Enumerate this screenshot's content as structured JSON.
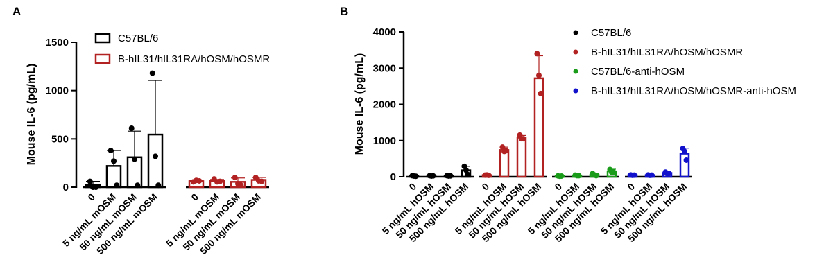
{
  "chart_data": [
    {
      "panel_label": "A",
      "type": "bar",
      "marker": "box",
      "ylabel": "Mouse IL-6 (pg/mL)",
      "ylim": [
        0,
        1500
      ],
      "yticks": [
        0,
        500,
        1000,
        1500
      ],
      "groups": [
        {
          "name": "C57BL/6",
          "color": "#000000",
          "categories": [
            "0",
            "5 ng/mL mOSM",
            "50 ng/mL mOSM",
            "500 ng/mL mOSM"
          ],
          "means": [
            20,
            220,
            310,
            545
          ],
          "sd": [
            40,
            160,
            270,
            560
          ],
          "points": [
            [
              60,
              0,
              0
            ],
            [
              380,
              270,
              20
            ],
            [
              610,
              290,
              20
            ],
            [
              1180,
              320,
              20
            ]
          ]
        },
        {
          "name": "B-hIL31/hIL31RA/hOSM/hOSMR",
          "color": "#b22222",
          "categories": [
            "0",
            "5 ng/mL mOSM",
            "50 ng/mL mOSM",
            "500 ng/mL mOSM"
          ],
          "means": [
            62,
            65,
            55,
            75
          ],
          "sd": [
            8,
            15,
            40,
            25
          ],
          "points": [
            [
              55,
              70,
              65
            ],
            [
              85,
              55,
              60
            ],
            [
              100,
              35,
              20
            ],
            [
              100,
              65,
              60
            ]
          ]
        }
      ]
    },
    {
      "panel_label": "B",
      "type": "bar",
      "marker": "dot",
      "ylabel": "Mouse IL-6 (pg/mL)",
      "ylim": [
        0,
        4000
      ],
      "yticks": [
        0,
        1000,
        2000,
        3000,
        4000
      ],
      "groups": [
        {
          "name": "C57BL/6",
          "color": "#000000",
          "categories": [
            "0",
            "5 ng/mL hOSM",
            "50 ng/mL hOSM",
            "500 ng/mL hOSM"
          ],
          "means": [
            20,
            25,
            25,
            180
          ],
          "sd": [
            10,
            10,
            10,
            110
          ],
          "points": [
            [
              30,
              20,
              15
            ],
            [
              30,
              20,
              25
            ],
            [
              30,
              20,
              25
            ],
            [
              290,
              180,
              60
            ]
          ]
        },
        {
          "name": "B-hIL31/hIL31RA/hOSM/hOSMR",
          "color": "#b22222",
          "categories": [
            "0",
            "5 ng/mL hOSM",
            "50 ng/mL hOSM",
            "500 ng/mL hOSM"
          ],
          "means": [
            45,
            740,
            1080,
            2720
          ],
          "sd": [
            8,
            80,
            60,
            620
          ],
          "points": [
            [
              45,
              50,
              40
            ],
            [
              820,
              700,
              720
            ],
            [
              1150,
              1050,
              1050
            ],
            [
              3400,
              2800,
              2300
            ]
          ]
        },
        {
          "name": "C57BL/6-anti-hOSM",
          "color": "#1a9c1a",
          "categories": [
            "0",
            "5 ng/mL hOSM",
            "50 ng/mL hOSM",
            "500 ng/mL hOSM"
          ],
          "means": [
            20,
            35,
            55,
            150
          ],
          "sd": [
            10,
            10,
            30,
            60
          ],
          "points": [
            [
              25,
              15,
              20
            ],
            [
              45,
              30,
              30
            ],
            [
              90,
              50,
              30
            ],
            [
              200,
              120,
              130
            ]
          ]
        },
        {
          "name": "B-hIL31/hIL31RA/hOSM/hOSMR-anti-hOSM",
          "color": "#1111cc",
          "categories": [
            "0",
            "5 ng/mL hOSM",
            "50 ng/mL hOSM",
            "500 ng/mL hOSM"
          ],
          "means": [
            45,
            45,
            105,
            640
          ],
          "sd": [
            8,
            8,
            25,
            150
          ],
          "points": [
            [
              50,
              40,
              45
            ],
            [
              50,
              40,
              45
            ],
            [
              130,
              90,
              95
            ],
            [
              780,
              700,
              460
            ]
          ]
        }
      ]
    }
  ]
}
